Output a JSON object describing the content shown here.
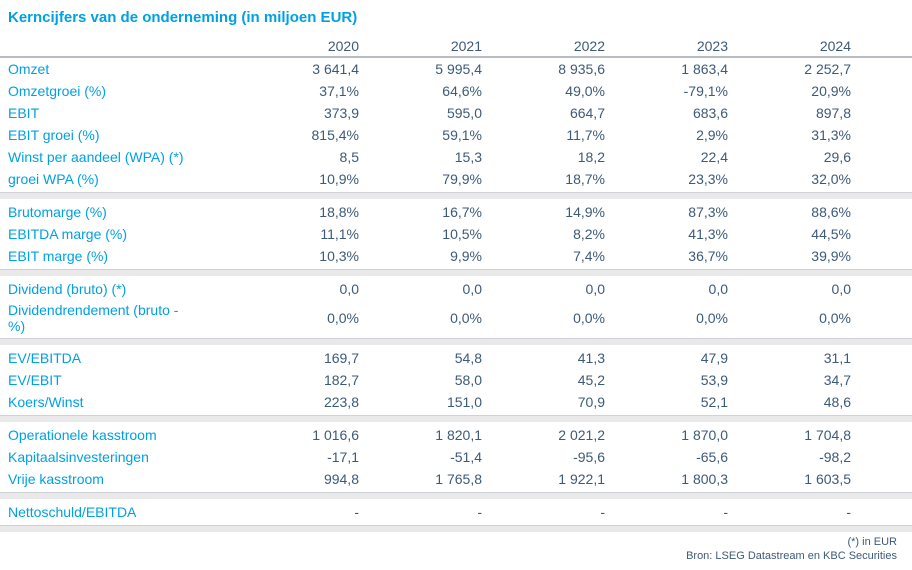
{
  "title": "Kerncijfers van de onderneming (in miljoen EUR)",
  "colors": {
    "accent_blue": "#00a1e0",
    "value_navy": "#3d5a78",
    "divider_band": "#e9e9e9",
    "header_line": "#b9bdc3"
  },
  "table": {
    "year_headers": [
      "2020",
      "2021",
      "2022",
      "2023",
      "2024"
    ],
    "sections": [
      {
        "rows": [
          {
            "label": "Omzet",
            "values": [
              "3 641,4",
              "5 995,4",
              "8 935,6",
              "1 863,4",
              "2 252,7"
            ]
          },
          {
            "label": "Omzetgroei (%)",
            "values": [
              "37,1%",
              "64,6%",
              "49,0%",
              "-79,1%",
              "20,9%"
            ]
          },
          {
            "label": "EBIT",
            "values": [
              "373,9",
              "595,0",
              "664,7",
              "683,6",
              "897,8"
            ]
          },
          {
            "label": "EBIT groei (%)",
            "values": [
              "815,4%",
              "59,1%",
              "11,7%",
              "2,9%",
              "31,3%"
            ]
          },
          {
            "label": "Winst per aandeel (WPA) (*)",
            "values": [
              "8,5",
              "15,3",
              "18,2",
              "22,4",
              "29,6"
            ]
          },
          {
            "label": "groei WPA (%)",
            "values": [
              "10,9%",
              "79,9%",
              "18,7%",
              "23,3%",
              "32,0%"
            ]
          }
        ]
      },
      {
        "rows": [
          {
            "label": "Brutomarge (%)",
            "values": [
              "18,8%",
              "16,7%",
              "14,9%",
              "87,3%",
              "88,6%"
            ]
          },
          {
            "label": "EBITDA marge (%)",
            "values": [
              "11,1%",
              "10,5%",
              "8,2%",
              "41,3%",
              "44,5%"
            ]
          },
          {
            "label": "EBIT marge (%)",
            "values": [
              "10,3%",
              "9,9%",
              "7,4%",
              "36,7%",
              "39,9%"
            ]
          }
        ]
      },
      {
        "rows": [
          {
            "label": "Dividend (bruto) (*)",
            "values": [
              "0,0",
              "0,0",
              "0,0",
              "0,0",
              "0,0"
            ]
          },
          {
            "label": "Dividendrendement (bruto - %)",
            "values": [
              "0,0%",
              "0,0%",
              "0,0%",
              "0,0%",
              "0,0%"
            ]
          }
        ]
      },
      {
        "rows": [
          {
            "label": "EV/EBITDA",
            "values": [
              "169,7",
              "54,8",
              "41,3",
              "47,9",
              "31,1"
            ]
          },
          {
            "label": "EV/EBIT",
            "values": [
              "182,7",
              "58,0",
              "45,2",
              "53,9",
              "34,7"
            ]
          },
          {
            "label": "Koers/Winst",
            "values": [
              "223,8",
              "151,0",
              "70,9",
              "52,1",
              "48,6"
            ]
          }
        ]
      },
      {
        "rows": [
          {
            "label": "Operationele kasstroom",
            "values": [
              "1 016,6",
              "1 820,1",
              "2 021,2",
              "1 870,0",
              "1 704,8"
            ]
          },
          {
            "label": "Kapitaalsinvesteringen",
            "values": [
              "-17,1",
              "-51,4",
              "-95,6",
              "-65,6",
              "-98,2"
            ]
          },
          {
            "label": "Vrije kasstroom",
            "values": [
              "994,8",
              "1 765,8",
              "1 922,1",
              "1 800,3",
              "1 603,5"
            ]
          }
        ]
      },
      {
        "rows": [
          {
            "label": "Nettoschuld/EBITDA",
            "values": [
              "-",
              "-",
              "-",
              "-",
              "-"
            ]
          }
        ]
      }
    ]
  },
  "footer": {
    "note": "(*) in EUR",
    "source": "Bron: LSEG Datastream en KBC Securities"
  }
}
